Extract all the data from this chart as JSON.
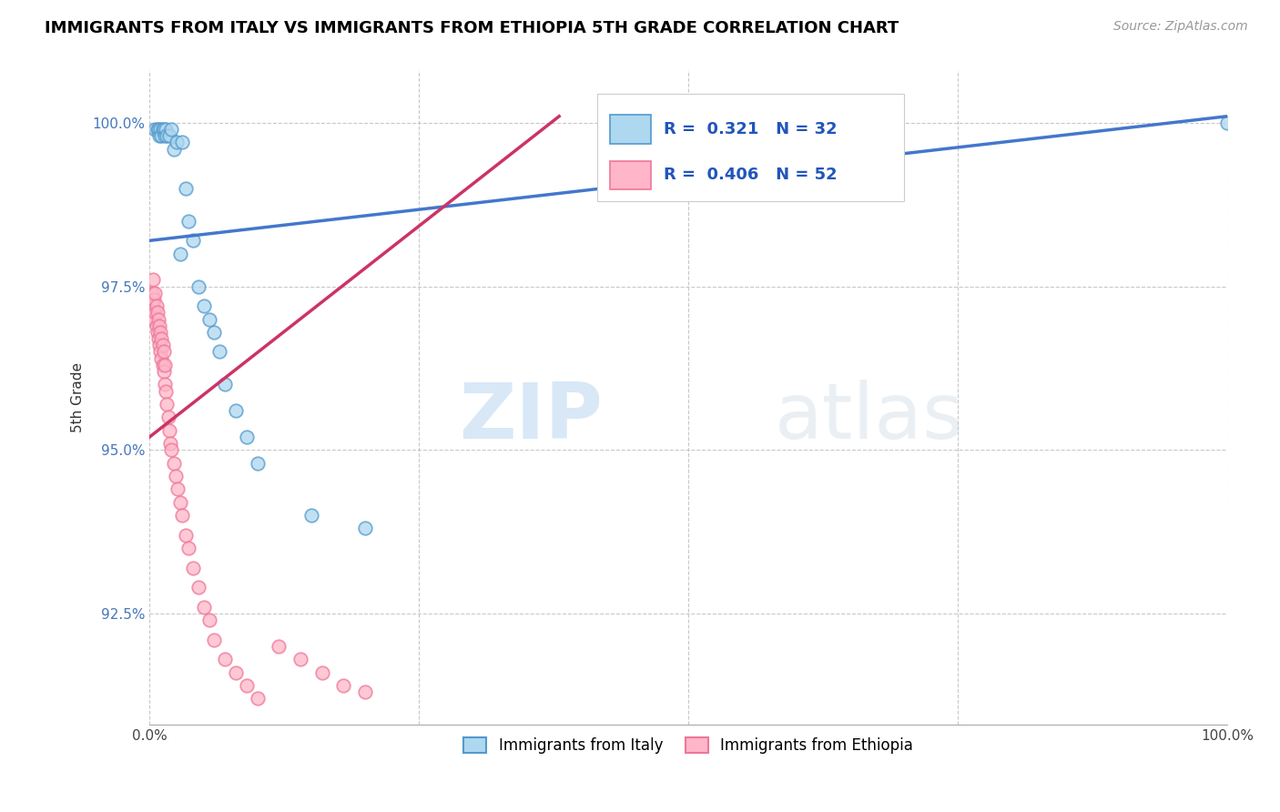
{
  "title": "IMMIGRANTS FROM ITALY VS IMMIGRANTS FROM ETHIOPIA 5TH GRADE CORRELATION CHART",
  "source": "Source: ZipAtlas.com",
  "ylabel": "5th Grade",
  "xlim": [
    0,
    1.0
  ],
  "ylim": [
    0.908,
    1.008
  ],
  "yticks": [
    0.925,
    0.95,
    0.975,
    1.0
  ],
  "yticklabels": [
    "92.5%",
    "95.0%",
    "97.5%",
    "100.0%"
  ],
  "italy_color": "#ADD8F0",
  "ethiopia_color": "#FFB6C8",
  "italy_edge": "#5599CC",
  "ethiopia_edge": "#EE7799",
  "trend_italy_color": "#4477CC",
  "trend_ethiopia_color": "#CC3366",
  "italy_R": 0.321,
  "italy_N": 32,
  "ethiopia_R": 0.406,
  "ethiopia_N": 52,
  "legend_italy": "Immigrants from Italy",
  "legend_ethiopia": "Immigrants from Ethiopia",
  "watermark_zip": "ZIP",
  "watermark_atlas": "atlas",
  "italy_x": [
    0.005,
    0.007,
    0.008,
    0.009,
    0.01,
    0.011,
    0.012,
    0.013,
    0.014,
    0.015,
    0.016,
    0.018,
    0.02,
    0.022,
    0.025,
    0.028,
    0.03,
    0.033,
    0.036,
    0.04,
    0.045,
    0.05,
    0.055,
    0.06,
    0.065,
    0.07,
    0.08,
    0.09,
    0.1,
    0.15,
    0.2,
    1.0
  ],
  "italy_y": [
    0.999,
    0.999,
    0.999,
    0.998,
    0.999,
    0.998,
    0.999,
    0.999,
    0.998,
    0.999,
    0.998,
    0.998,
    0.999,
    0.996,
    0.997,
    0.98,
    0.997,
    0.99,
    0.985,
    0.982,
    0.975,
    0.972,
    0.97,
    0.968,
    0.965,
    0.96,
    0.956,
    0.952,
    0.948,
    0.94,
    0.938,
    1.0
  ],
  "ethiopia_x": [
    0.002,
    0.003,
    0.003,
    0.004,
    0.004,
    0.005,
    0.005,
    0.006,
    0.006,
    0.007,
    0.007,
    0.008,
    0.008,
    0.009,
    0.009,
    0.01,
    0.01,
    0.011,
    0.011,
    0.012,
    0.012,
    0.013,
    0.013,
    0.014,
    0.014,
    0.015,
    0.016,
    0.017,
    0.018,
    0.019,
    0.02,
    0.022,
    0.024,
    0.026,
    0.028,
    0.03,
    0.033,
    0.036,
    0.04,
    0.045,
    0.05,
    0.055,
    0.06,
    0.07,
    0.08,
    0.09,
    0.1,
    0.12,
    0.14,
    0.16,
    0.18,
    0.2
  ],
  "ethiopia_y": [
    0.974,
    0.972,
    0.976,
    0.97,
    0.973,
    0.971,
    0.974,
    0.969,
    0.972,
    0.968,
    0.971,
    0.967,
    0.97,
    0.966,
    0.969,
    0.965,
    0.968,
    0.964,
    0.967,
    0.963,
    0.966,
    0.962,
    0.965,
    0.96,
    0.963,
    0.959,
    0.957,
    0.955,
    0.953,
    0.951,
    0.95,
    0.948,
    0.946,
    0.944,
    0.942,
    0.94,
    0.937,
    0.935,
    0.932,
    0.929,
    0.926,
    0.924,
    0.921,
    0.918,
    0.916,
    0.914,
    0.912,
    0.92,
    0.918,
    0.916,
    0.914,
    0.913
  ]
}
